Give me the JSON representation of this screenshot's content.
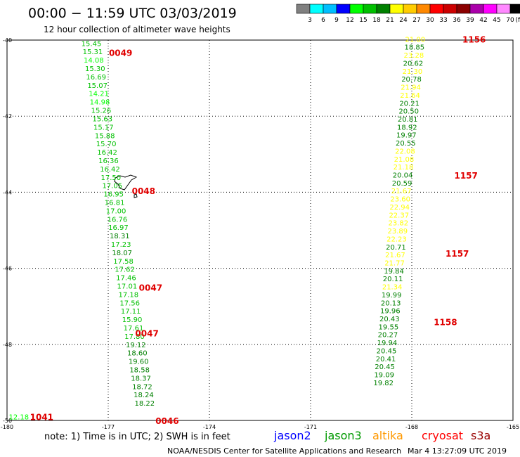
{
  "header": {
    "title": "00:00 − 11:59 UTC 03/03/2019",
    "subtitle": "12 hour collection of altimeter wave heights"
  },
  "legend": {
    "colors": [
      "#808080",
      "#00ffff",
      "#00bfff",
      "#0000ff",
      "#00ff00",
      "#00c000",
      "#008000",
      "#ffff00",
      "#ffcc00",
      "#ff8800",
      "#ff0000",
      "#cc0000",
      "#8b0000",
      "#aa00aa",
      "#ff00ff",
      "#ff88ff",
      "#000000"
    ],
    "labels": [
      "3",
      "6",
      "9",
      "12",
      "15",
      "18",
      "21",
      "24",
      "27",
      "30",
      "33",
      "36",
      "39",
      "42",
      "45",
      "70"
    ],
    "unit": "(ft)"
  },
  "footer": {
    "note": "note: 1) Time is in UTC; 2) SWH is in feet",
    "satellites": [
      {
        "name": "jason2",
        "color": "#0000ff"
      },
      {
        "name": "jason3",
        "color": "#009900"
      },
      {
        "name": "altika",
        "color": "#ff9900"
      },
      {
        "name": "cryosat",
        "color": "#ff0000"
      },
      {
        "name": "s3a",
        "color": "#990000"
      }
    ],
    "credit": "NOAA/NESDIS Center for Satellite Applications and Research",
    "timestamp": "Mar  4 13:27:09 UTC 2019"
  },
  "chart_data": {
    "type": "scatter",
    "x_ticks": [
      "-180",
      "-177",
      "-174",
      "-171",
      "-168",
      "-165"
    ],
    "y_ticks": [
      "-40",
      "-42",
      "-44",
      "-46",
      "-48",
      "-50"
    ],
    "xlim": [
      -180,
      -165
    ],
    "ylim": [
      -50,
      -40
    ],
    "grid": true,
    "time_labels": [
      {
        "text": "0049",
        "lon": -176.98,
        "lat": -40.32
      },
      {
        "text": "0048",
        "lon": -176.3,
        "lat": -43.96
      },
      {
        "text": "0047",
        "lon": -176.09,
        "lat": -46.5
      },
      {
        "text": "0047",
        "lon": -176.2,
        "lat": -47.7
      },
      {
        "text": "0046",
        "lon": -175.6,
        "lat": -50.0
      },
      {
        "text": "1041",
        "lon": -179.32,
        "lat": -49.9
      },
      {
        "text": "1156",
        "lon": -166.5,
        "lat": -39.97
      },
      {
        "text": "1157",
        "lon": -166.74,
        "lat": -43.55
      },
      {
        "text": "1157",
        "lon": -167.0,
        "lat": -45.6
      },
      {
        "text": "1158",
        "lon": -167.35,
        "lat": -47.4
      }
    ],
    "series": [
      {
        "name": "jason3",
        "points": [
          {
            "lon": -177.5,
            "lat": -40.08,
            "v": "15.45"
          },
          {
            "lon": -177.46,
            "lat": -40.3,
            "v": "15.31"
          },
          {
            "lon": -177.43,
            "lat": -40.52,
            "v": "14.08"
          },
          {
            "lon": -177.39,
            "lat": -40.74,
            "v": "15.30"
          },
          {
            "lon": -177.36,
            "lat": -40.96,
            "v": "16.69"
          },
          {
            "lon": -177.32,
            "lat": -41.18,
            "v": "15.07"
          },
          {
            "lon": -177.28,
            "lat": -41.4,
            "v": "14.21"
          },
          {
            "lon": -177.25,
            "lat": -41.62,
            "v": "14.98"
          },
          {
            "lon": -177.21,
            "lat": -41.84,
            "v": "15.26"
          },
          {
            "lon": -177.17,
            "lat": -42.06,
            "v": "15.63"
          },
          {
            "lon": -177.14,
            "lat": -42.28,
            "v": "15.17"
          },
          {
            "lon": -177.1,
            "lat": -42.5,
            "v": "15.88"
          },
          {
            "lon": -177.06,
            "lat": -42.72,
            "v": "15.70"
          },
          {
            "lon": -177.03,
            "lat": -42.94,
            "v": "16.42"
          },
          {
            "lon": -176.99,
            "lat": -43.16,
            "v": "16.36"
          },
          {
            "lon": -176.95,
            "lat": -43.38,
            "v": "16.42"
          },
          {
            "lon": -176.92,
            "lat": -43.6,
            "v": "17.50"
          },
          {
            "lon": -176.88,
            "lat": -43.82,
            "v": "17.05"
          },
          {
            "lon": -176.84,
            "lat": -44.04,
            "v": "16.95"
          },
          {
            "lon": -176.81,
            "lat": -44.26,
            "v": "16.81"
          },
          {
            "lon": -176.77,
            "lat": -44.48,
            "v": "17.00"
          },
          {
            "lon": -176.73,
            "lat": -44.7,
            "v": "16.76"
          },
          {
            "lon": -176.7,
            "lat": -44.92,
            "v": "16.97"
          },
          {
            "lon": -176.66,
            "lat": -45.14,
            "v": "18.31"
          },
          {
            "lon": -176.62,
            "lat": -45.36,
            "v": "17.23"
          },
          {
            "lon": -176.59,
            "lat": -45.58,
            "v": "18.07"
          },
          {
            "lon": -176.55,
            "lat": -45.8,
            "v": "17.58"
          },
          {
            "lon": -176.51,
            "lat": -46.02,
            "v": "17.62"
          },
          {
            "lon": -176.47,
            "lat": -46.24,
            "v": "17.46"
          },
          {
            "lon": -176.44,
            "lat": -46.46,
            "v": "17.01"
          },
          {
            "lon": -176.4,
            "lat": -46.68,
            "v": "17.18"
          },
          {
            "lon": -176.36,
            "lat": -46.9,
            "v": "17.56"
          },
          {
            "lon": -176.33,
            "lat": -47.12,
            "v": "17.11"
          },
          {
            "lon": -176.29,
            "lat": -47.34,
            "v": "15.90"
          },
          {
            "lon": -176.25,
            "lat": -47.56,
            "v": "17.61"
          },
          {
            "lon": -176.22,
            "lat": -47.78,
            "v": "17.80"
          },
          {
            "lon": -176.18,
            "lat": -48.0,
            "v": "19.12"
          },
          {
            "lon": -176.14,
            "lat": -48.22,
            "v": "18.60"
          },
          {
            "lon": -176.1,
            "lat": -48.44,
            "v": "19.60"
          },
          {
            "lon": -176.07,
            "lat": -48.66,
            "v": "18.58"
          },
          {
            "lon": -176.03,
            "lat": -48.88,
            "v": "18.37"
          },
          {
            "lon": -175.99,
            "lat": -49.1,
            "v": "18.72"
          },
          {
            "lon": -175.95,
            "lat": -49.32,
            "v": "18.24"
          },
          {
            "lon": -175.92,
            "lat": -49.54,
            "v": "18.22"
          },
          {
            "lon": -179.65,
            "lat": -49.9,
            "v": "12.18"
          }
        ]
      },
      {
        "name": "jason3",
        "points": [
          {
            "lon": -167.9,
            "lat": -39.97,
            "v": "21.00"
          },
          {
            "lon": -167.92,
            "lat": -40.18,
            "v": "18.85"
          },
          {
            "lon": -167.94,
            "lat": -40.39,
            "v": "23.28"
          },
          {
            "lon": -167.96,
            "lat": -40.6,
            "v": "20.62"
          },
          {
            "lon": -167.98,
            "lat": -40.81,
            "v": "21.30"
          },
          {
            "lon": -168.01,
            "lat": -41.02,
            "v": "20.78"
          },
          {
            "lon": -168.03,
            "lat": -41.23,
            "v": "21.94"
          },
          {
            "lon": -168.05,
            "lat": -41.44,
            "v": "21.64"
          },
          {
            "lon": -168.07,
            "lat": -41.65,
            "v": "20.21"
          },
          {
            "lon": -168.09,
            "lat": -41.86,
            "v": "20.50"
          },
          {
            "lon": -168.12,
            "lat": -42.07,
            "v": "20.81"
          },
          {
            "lon": -168.14,
            "lat": -42.28,
            "v": "18.92"
          },
          {
            "lon": -168.16,
            "lat": -42.49,
            "v": "19.97"
          },
          {
            "lon": -168.18,
            "lat": -42.7,
            "v": "20.55"
          },
          {
            "lon": -168.2,
            "lat": -42.91,
            "v": "22.08"
          },
          {
            "lon": -168.23,
            "lat": -43.12,
            "v": "21.08"
          },
          {
            "lon": -168.25,
            "lat": -43.33,
            "v": "21.18"
          },
          {
            "lon": -168.27,
            "lat": -43.54,
            "v": "20.04"
          },
          {
            "lon": -168.29,
            "lat": -43.75,
            "v": "20.59"
          },
          {
            "lon": -168.31,
            "lat": -43.96,
            "v": "21.67"
          },
          {
            "lon": -168.34,
            "lat": -44.17,
            "v": "23.60"
          },
          {
            "lon": -168.36,
            "lat": -44.38,
            "v": "22.94"
          },
          {
            "lon": -168.38,
            "lat": -44.59,
            "v": "22.37"
          },
          {
            "lon": -168.4,
            "lat": -44.8,
            "v": "23.82"
          },
          {
            "lon": -168.42,
            "lat": -45.01,
            "v": "23.89"
          },
          {
            "lon": -168.45,
            "lat": -45.22,
            "v": "22.23"
          },
          {
            "lon": -168.47,
            "lat": -45.43,
            "v": "20.71"
          },
          {
            "lon": -168.49,
            "lat": -45.64,
            "v": "21.67"
          },
          {
            "lon": -168.51,
            "lat": -45.85,
            "v": "21.77"
          },
          {
            "lon": -168.53,
            "lat": -46.06,
            "v": "19.84"
          },
          {
            "lon": -168.56,
            "lat": -46.27,
            "v": "20.11"
          },
          {
            "lon": -168.58,
            "lat": -46.48,
            "v": "21.34"
          },
          {
            "lon": -168.6,
            "lat": -46.69,
            "v": "19.99"
          },
          {
            "lon": -168.62,
            "lat": -46.9,
            "v": "20.13"
          },
          {
            "lon": -168.64,
            "lat": -47.11,
            "v": "19.96"
          },
          {
            "lon": -168.66,
            "lat": -47.32,
            "v": "20.43"
          },
          {
            "lon": -168.69,
            "lat": -47.53,
            "v": "19.55"
          },
          {
            "lon": -168.71,
            "lat": -47.74,
            "v": "20.27"
          },
          {
            "lon": -168.73,
            "lat": -47.95,
            "v": "19.94"
          },
          {
            "lon": -168.75,
            "lat": -48.16,
            "v": "20.45"
          },
          {
            "lon": -168.77,
            "lat": -48.37,
            "v": "20.41"
          },
          {
            "lon": -168.8,
            "lat": -48.58,
            "v": "20.45"
          },
          {
            "lon": -168.82,
            "lat": -48.79,
            "v": "19.09"
          },
          {
            "lon": -168.84,
            "lat": -49.0,
            "v": "19.82"
          }
        ]
      }
    ]
  }
}
